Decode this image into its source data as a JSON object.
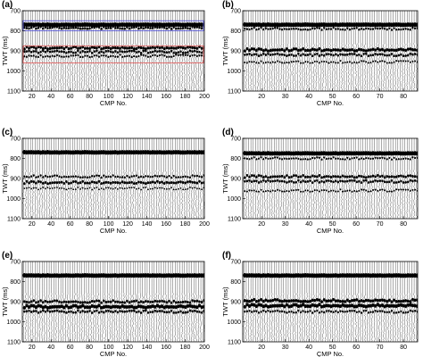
{
  "chart_data": [
    {
      "type": "seismic_section",
      "panel": "(a)",
      "xlabel": "CMP No.",
      "ylabel": "TWT (ms)",
      "xlim": [
        10,
        200
      ],
      "ylim": [
        1100,
        700
      ],
      "xticks": [
        20,
        40,
        60,
        80,
        100,
        120,
        140,
        160,
        180,
        200
      ],
      "yticks": [
        700,
        800,
        900,
        1000,
        1100
      ],
      "reflectors_ms": [
        {
          "t": 770,
          "amp": 1.0
        },
        {
          "t": 785,
          "amp": 0.55
        },
        {
          "t": 885,
          "amp": 0.65
        },
        {
          "t": 905,
          "amp": 0.55
        },
        {
          "t": 925,
          "amp": 0.45
        }
      ],
      "boxes": [
        {
          "color": "#5a5ad6",
          "x": [
            10,
            200
          ],
          "t": [
            750,
            800
          ]
        },
        {
          "color": "#e06060",
          "x": [
            10,
            200
          ],
          "t": [
            875,
            960
          ]
        }
      ]
    },
    {
      "type": "seismic_section",
      "panel": "(b)",
      "xlabel": "CMP No.",
      "ylabel": "TWT (ms)",
      "xlim": [
        12,
        86
      ],
      "ylim": [
        1100,
        700
      ],
      "xticks": [
        20,
        30,
        40,
        50,
        60,
        70,
        80
      ],
      "yticks": [
        700,
        800,
        900,
        1000,
        1100
      ],
      "reflectors_ms": [
        {
          "t": 770,
          "amp": 1.0
        },
        {
          "t": 790,
          "amp": 0.5
        },
        {
          "t": 895,
          "amp": 0.7
        },
        {
          "t": 920,
          "amp": 0.55
        },
        {
          "t": 955,
          "amp": 0.4
        }
      ],
      "boxes": []
    },
    {
      "type": "seismic_section",
      "panel": "(c)",
      "xlabel": "CMP No.",
      "ylabel": "TWT (ms)",
      "xlim": [
        10,
        200
      ],
      "ylim": [
        1100,
        700
      ],
      "xticks": [
        20,
        40,
        60,
        80,
        100,
        120,
        140,
        160,
        180,
        200
      ],
      "yticks": [
        700,
        800,
        900,
        1000,
        1100
      ],
      "reflectors_ms": [
        {
          "t": 770,
          "amp": 1.0
        },
        {
          "t": 890,
          "amp": 0.5
        },
        {
          "t": 920,
          "amp": 0.6
        },
        {
          "t": 950,
          "amp": 0.35
        }
      ],
      "boxes": []
    },
    {
      "type": "seismic_section",
      "panel": "(d)",
      "xlabel": "CMP No.",
      "ylabel": "TWT (ms)",
      "xlim": [
        12,
        86
      ],
      "ylim": [
        1100,
        700
      ],
      "xticks": [
        20,
        30,
        40,
        50,
        60,
        70,
        80
      ],
      "yticks": [
        700,
        800,
        900,
        1000,
        1100
      ],
      "reflectors_ms": [
        {
          "t": 775,
          "amp": 1.0
        },
        {
          "t": 800,
          "amp": 0.45
        },
        {
          "t": 890,
          "amp": 0.6
        },
        {
          "t": 915,
          "amp": 0.55
        },
        {
          "t": 960,
          "amp": 0.4
        }
      ],
      "boxes": []
    },
    {
      "type": "seismic_section",
      "panel": "(e)",
      "xlabel": "CMP No.",
      "ylabel": "TWT (ms)",
      "xlim": [
        10,
        200
      ],
      "ylim": [
        1100,
        700
      ],
      "xticks": [
        20,
        40,
        60,
        80,
        100,
        120,
        140,
        160,
        180,
        200
      ],
      "yticks": [
        700,
        800,
        900,
        1000,
        1100
      ],
      "reflectors_ms": [
        {
          "t": 770,
          "amp": 1.0
        },
        {
          "t": 900,
          "amp": 0.6
        },
        {
          "t": 925,
          "amp": 0.8
        },
        {
          "t": 950,
          "amp": 0.55
        }
      ],
      "boxes": []
    },
    {
      "type": "seismic_section",
      "panel": "(f)",
      "xlabel": "ÇMP No.",
      "ylabel": "TWT (ms)",
      "xlim": [
        12,
        86
      ],
      "ylim": [
        1100,
        700
      ],
      "xticks": [
        20,
        30,
        40,
        50,
        60,
        70,
        80
      ],
      "yticks": [
        700,
        800,
        900,
        1000,
        1100
      ],
      "reflectors_ms": [
        {
          "t": 770,
          "amp": 1.0
        },
        {
          "t": 895,
          "amp": 0.7
        },
        {
          "t": 920,
          "amp": 0.8
        },
        {
          "t": 950,
          "amp": 0.5
        }
      ],
      "boxes": []
    }
  ]
}
